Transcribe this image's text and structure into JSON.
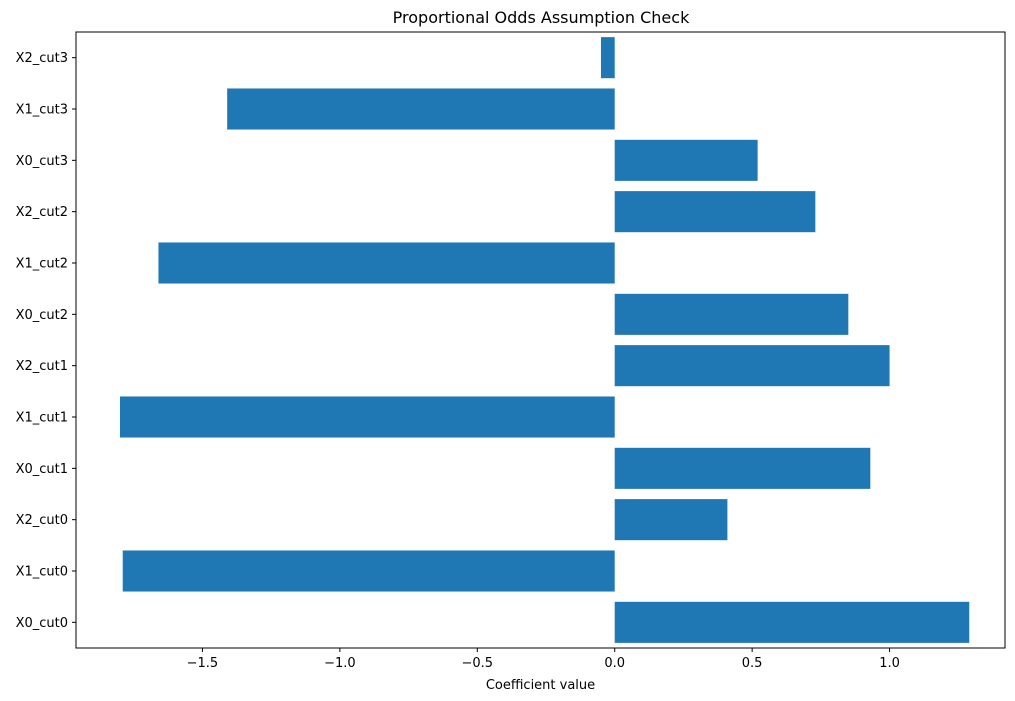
{
  "chart_data": {
    "type": "bar",
    "orientation": "horizontal",
    "title": "Proportional Odds Assumption Check",
    "xlabel": "Coefficient value",
    "ylabel": "",
    "categories": [
      "X0_cut0",
      "X1_cut0",
      "X2_cut0",
      "X0_cut1",
      "X1_cut1",
      "X2_cut1",
      "X0_cut2",
      "X1_cut2",
      "X2_cut2",
      "X0_cut3",
      "X1_cut3",
      "X2_cut3"
    ],
    "values": [
      1.29,
      -1.79,
      0.41,
      0.93,
      -1.8,
      1.0,
      0.85,
      -1.66,
      0.73,
      0.52,
      -1.41,
      -0.05
    ],
    "xlim": [
      -1.96,
      1.42
    ],
    "xticks": [
      -1.5,
      -1.0,
      -0.5,
      0.0,
      0.5,
      1.0
    ],
    "xtick_labels": [
      "−1.5",
      "−1.0",
      "−0.5",
      "0.0",
      "0.5",
      "1.0"
    ],
    "bar_color": "#1f77b4",
    "grid": false,
    "legend": "none"
  }
}
